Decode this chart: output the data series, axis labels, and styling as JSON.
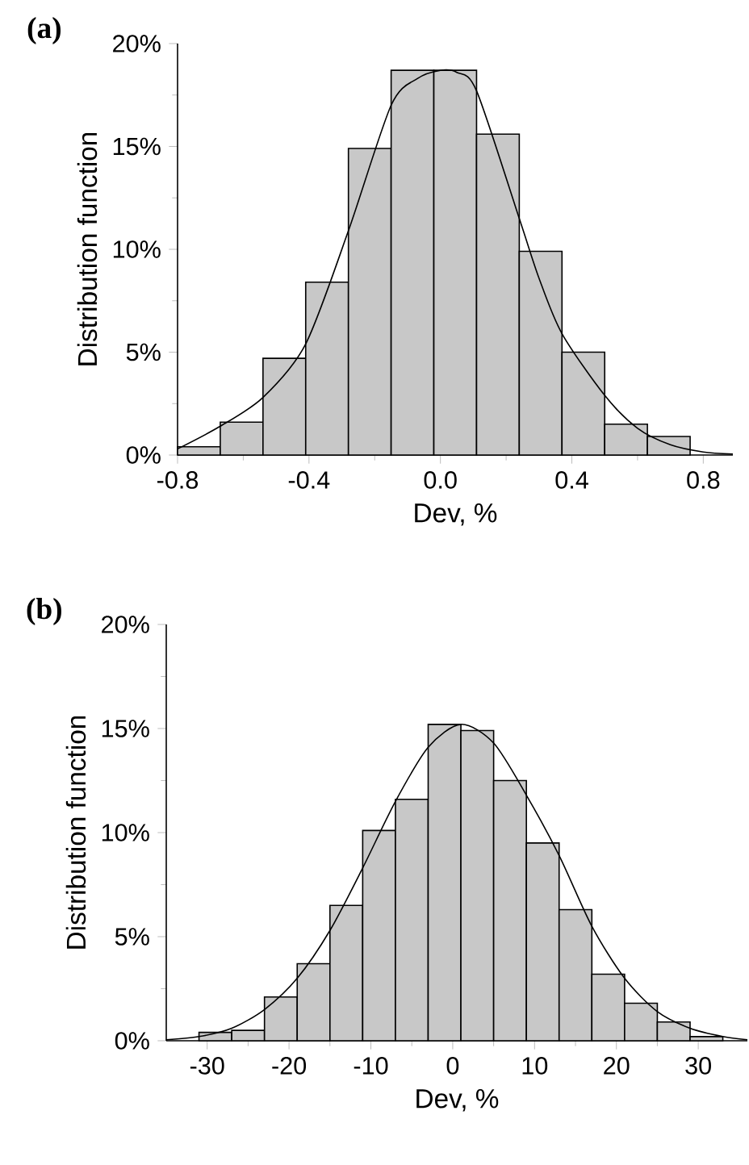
{
  "chart_data": [
    {
      "type": "histogram",
      "title": "(a)",
      "xlabel": "Dev, %",
      "ylabel": "Distribution function",
      "color": "#c8c8c8",
      "bins": [
        -0.8,
        -0.67,
        -0.54,
        -0.41,
        -0.28,
        -0.15,
        -0.02,
        0.11,
        0.24,
        0.37,
        0.5,
        0.63,
        0.76
      ],
      "values": [
        0.4,
        1.6,
        4.7,
        8.4,
        14.9,
        18.7,
        18.7,
        15.6,
        9.9,
        5.0,
        1.5,
        0.9
      ],
      "series": [
        {
          "type": "line",
          "color": "#000000",
          "x": [
            -0.8,
            -0.67,
            -0.54,
            -0.41,
            -0.28,
            -0.15,
            -0.07,
            0.0,
            0.05,
            0.11,
            0.24,
            0.3,
            0.37,
            0.5,
            0.6,
            0.7,
            0.8,
            0.89
          ],
          "values": [
            0.3,
            1.4,
            2.8,
            5.4,
            10.9,
            17.0,
            18.3,
            18.7,
            18.6,
            17.7,
            11.5,
            8.6,
            5.9,
            2.9,
            1.3,
            0.5,
            0.15,
            0.05
          ]
        }
      ],
      "xlim": [
        -0.8,
        0.89
      ],
      "ylim": [
        0,
        20
      ],
      "xticks": [
        -0.8,
        -0.4,
        {
          "value": 0,
          "label": "0.0"
        },
        0.4,
        0.8
      ],
      "yticks": [
        {
          "value": 0,
          "label": "0%"
        },
        {
          "value": 5,
          "label": "5%"
        },
        {
          "value": 10,
          "label": "10%"
        },
        {
          "value": 15,
          "label": "15%"
        },
        {
          "value": 20,
          "label": "20%"
        }
      ]
    },
    {
      "type": "histogram",
      "title": "(b)",
      "xlabel": "Dev, %",
      "ylabel": "Distribution function",
      "color": "#c8c8c8",
      "bins": [
        -31,
        -27,
        -23,
        -19,
        -15,
        -11,
        -7,
        -3,
        1,
        5,
        9,
        13,
        17,
        21,
        25,
        29,
        33
      ],
      "values": [
        0.4,
        0.5,
        2.1,
        3.7,
        6.5,
        10.1,
        11.6,
        15.2,
        14.9,
        12.5,
        9.5,
        6.3,
        3.2,
        1.8,
        0.9,
        0.2
      ],
      "series": [
        {
          "type": "line",
          "color": "#000000",
          "x": [
            -35,
            -31,
            -27,
            -23,
            -19,
            -15,
            -11,
            -7,
            -3,
            1,
            5,
            9,
            13,
            17,
            21,
            25,
            29,
            33,
            36
          ],
          "values": [
            0.05,
            0.2,
            0.6,
            1.5,
            3.0,
            5.3,
            8.3,
            11.5,
            14.1,
            15.2,
            14.3,
            11.8,
            8.9,
            5.5,
            3.0,
            1.4,
            0.6,
            0.2,
            0.05
          ]
        }
      ],
      "xlim": [
        -35,
        36
      ],
      "ylim": [
        0,
        20
      ],
      "xticks": [
        -30,
        -20,
        -10,
        0,
        10,
        20,
        30
      ],
      "yticks": [
        {
          "value": 0,
          "label": "0%"
        },
        {
          "value": 5,
          "label": "5%"
        },
        {
          "value": 10,
          "label": "10%"
        },
        {
          "value": 15,
          "label": "15%"
        },
        {
          "value": 20,
          "label": "20%"
        }
      ]
    }
  ]
}
